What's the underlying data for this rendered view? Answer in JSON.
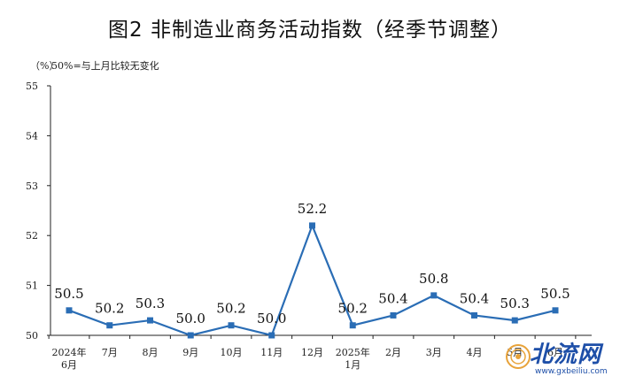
{
  "chart_data": {
    "type": "line",
    "title": "图2  非制造业商务活动指数（经季节调整）",
    "unit": "（%）",
    "note": "50%=与上月比较无变化",
    "categories": [
      "2024年\n6月",
      "7月",
      "8月",
      "9月",
      "10月",
      "11月",
      "12月",
      "2025年\n1月",
      "2月",
      "3月",
      "4月",
      "5月",
      "6月"
    ],
    "series": [
      {
        "values": [
          50.5,
          50.2,
          50.3,
          50.0,
          50.2,
          50.0,
          52.2,
          50.2,
          50.4,
          50.8,
          50.4,
          50.3,
          50.5
        ]
      }
    ],
    "ylim": [
      50,
      55
    ],
    "yticks": [
      50,
      51,
      52,
      53,
      54,
      55
    ],
    "grid": false,
    "legend": "none",
    "color": "#2a6db5"
  },
  "watermark": {
    "text": "北流网",
    "url": "www.gxbeiliu.com"
  }
}
